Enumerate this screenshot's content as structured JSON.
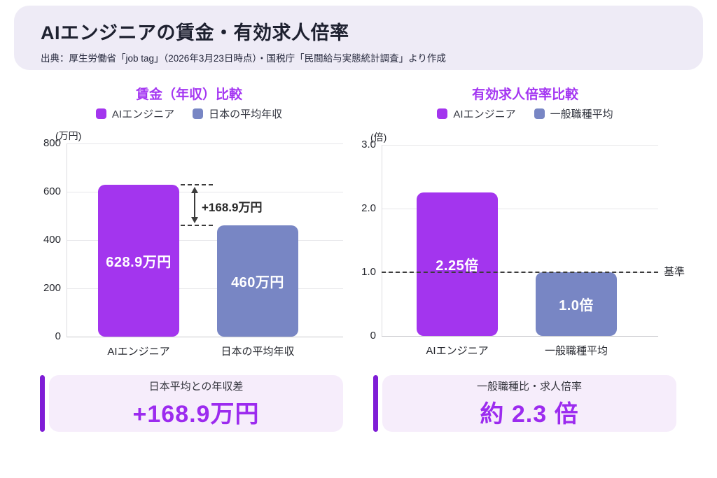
{
  "header": {
    "title": "AIエンジニアの賃金・有効求人倍率",
    "source": "出典：厚生労働省「job tag」（2026年3月23日時点）・国税庁「民間給与実態統計調査」より作成"
  },
  "colors": {
    "bar_purple": "#a335ee",
    "bar_blue": "#7886c4",
    "title_purple": "#a436f2",
    "value_purple": "#9c2bef",
    "accent_deep_purple": "#7f1dd6",
    "header_bg": "#eeebf6",
    "card_bg": "#f6edfb",
    "text_dark": "#22252f"
  },
  "chart_data": [
    {
      "type": "bar",
      "title": "賃金（年収）比較",
      "unit_label": "(万円)",
      "categories": [
        "AIエンジニア",
        "日本の平均年収"
      ],
      "values": [
        628.9,
        460
      ],
      "bar_labels": [
        "628.9万円",
        "460万円"
      ],
      "bar_colors": [
        "#a335ee",
        "#7886c4"
      ],
      "legend": [
        "AIエンジニア",
        "日本の平均年収"
      ],
      "ylim": [
        0,
        800
      ],
      "yticks": [
        0,
        200,
        400,
        600,
        800
      ],
      "ytick_labels": [
        "0",
        "200",
        "400",
        "600",
        "800"
      ],
      "grid": true,
      "annotation": {
        "type": "diff-arrow",
        "label": "+168.9万円",
        "from_value": 628.9,
        "to_value": 460
      }
    },
    {
      "type": "bar",
      "title": "有効求人倍率比較",
      "unit_label": "(倍)",
      "categories": [
        "AIエンジニア",
        "一般職種平均"
      ],
      "values": [
        2.25,
        1.0
      ],
      "bar_labels": [
        "2.25倍",
        "1.0倍"
      ],
      "bar_colors": [
        "#a335ee",
        "#7886c4"
      ],
      "legend": [
        "AIエンジニア",
        "一般職種平均"
      ],
      "ylim": [
        0,
        3.0
      ],
      "yticks": [
        0,
        1.0,
        2.0,
        3.0
      ],
      "ytick_labels": [
        "0",
        "1.0",
        "2.0",
        "3.0"
      ],
      "grid": true,
      "baseline": {
        "value": 1.0,
        "label": "基準"
      }
    }
  ],
  "summary_cards": [
    {
      "caption": "日本平均との年収差",
      "value": "+168.9万円"
    },
    {
      "caption": "一般職種比・求人倍率",
      "value": "約 2.3 倍"
    }
  ]
}
